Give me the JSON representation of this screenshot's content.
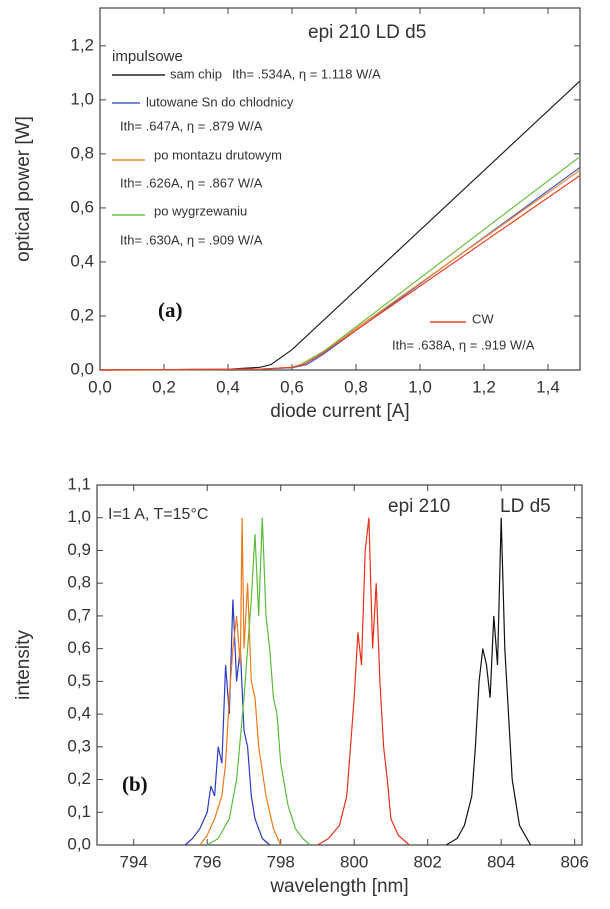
{
  "chart_data": [
    {
      "type": "line",
      "title": "epi 210    LD d5",
      "panel_label": "(a)",
      "legend_title": "impulsowe",
      "x_label": "diode current  [A]",
      "y_label": "optical power [W]",
      "xlim": [
        0,
        1.5
      ],
      "ylim": [
        0,
        1.34
      ],
      "xticks": [
        {
          "value": 0,
          "label": "0,0"
        },
        {
          "value": 0.2,
          "label": "0,2"
        },
        {
          "value": 0.4,
          "label": "0,4"
        },
        {
          "value": 0.6,
          "label": "0,6"
        },
        {
          "value": 0.8,
          "label": "0,8"
        },
        {
          "value": 1.0,
          "label": "1,0"
        },
        {
          "value": 1.2,
          "label": "1,2"
        },
        {
          "value": 1.4,
          "label": "1,4"
        }
      ],
      "yticks": [
        {
          "value": 0,
          "label": "0,0"
        },
        {
          "value": 0.2,
          "label": "0,2"
        },
        {
          "value": 0.4,
          "label": "0,4"
        },
        {
          "value": 0.6,
          "label": "0,6"
        },
        {
          "value": 0.8,
          "label": "0,8"
        },
        {
          "value": 1.0,
          "label": "1,0"
        },
        {
          "value": 1.2,
          "label": "1,2"
        }
      ],
      "series": [
        {
          "name": "sam chip",
          "annotation": "Ith= .534A,  η = 1.118 W/A",
          "color": "#222222",
          "x": [
            0,
            0.4,
            0.5,
            0.534,
            0.6,
            1.5
          ],
          "values": [
            0,
            0.003,
            0.01,
            0.02,
            0.075,
            1.07
          ]
        },
        {
          "name": "lutowane Sn do chlodnicy",
          "annotation": "Ith= .647A,  η = .879 W/A",
          "color": "#4a5fd0",
          "x": [
            0,
            0.5,
            0.6,
            0.647,
            0.7,
            1.5
          ],
          "values": [
            0,
            0.003,
            0.008,
            0.02,
            0.06,
            0.75
          ]
        },
        {
          "name": "po montazu drutowym",
          "annotation": "Ith= .626A,  η = .867 W/A",
          "color": "#f28a2a",
          "x": [
            0,
            0.5,
            0.6,
            0.626,
            0.7,
            1.5
          ],
          "values": [
            0,
            0.003,
            0.01,
            0.02,
            0.07,
            0.74
          ]
        },
        {
          "name": "po wygrzewaniu",
          "annotation": "Ith= .630A,  η = .909 W/A",
          "color": "#6cc04a",
          "x": [
            0,
            0.5,
            0.6,
            0.63,
            0.7,
            1.5
          ],
          "values": [
            0,
            0.003,
            0.01,
            0.02,
            0.07,
            0.79
          ]
        },
        {
          "name": "CW",
          "annotation": "Ith= .638A,  η = .919 W/A",
          "color": "#e8402a",
          "x": [
            0,
            0.5,
            0.6,
            0.638,
            0.7,
            1.5
          ],
          "values": [
            0,
            0.003,
            0.01,
            0.02,
            0.065,
            0.72
          ]
        }
      ]
    },
    {
      "type": "line",
      "title": "epi 210",
      "subtitle": "LD d5",
      "annotation": "I=1 A, T=15°C",
      "panel_label": "(b)",
      "x_label": "wavelength  [nm]",
      "y_label": "intensity",
      "xlim": [
        793,
        806.2
      ],
      "ylim": [
        0,
        1.1
      ],
      "xticks": [
        794,
        796,
        798,
        800,
        802,
        804,
        806
      ],
      "yticks": [
        {
          "value": 0,
          "label": "0,0"
        },
        {
          "value": 0.1,
          "label": "0,1"
        },
        {
          "value": 0.2,
          "label": "0,2"
        },
        {
          "value": 0.3,
          "label": "0,3"
        },
        {
          "value": 0.4,
          "label": "0,4"
        },
        {
          "value": 0.5,
          "label": "0,5"
        },
        {
          "value": 0.6,
          "label": "0,6"
        },
        {
          "value": 0.7,
          "label": "0,7"
        },
        {
          "value": 0.8,
          "label": "0,8"
        },
        {
          "value": 0.9,
          "label": "0,9"
        },
        {
          "value": 1.0,
          "label": "1,0"
        },
        {
          "value": 1.1,
          "label": "1,1"
        }
      ],
      "series": [
        {
          "color": "#2a3cc0",
          "x": [
            795.4,
            795.6,
            795.8,
            796.0,
            796.1,
            796.2,
            796.3,
            796.4,
            796.5,
            796.6,
            796.7,
            796.8,
            796.9,
            797.0,
            797.1,
            797.2,
            797.3,
            797.5,
            797.7
          ],
          "values": [
            0,
            0.02,
            0.05,
            0.1,
            0.18,
            0.15,
            0.3,
            0.25,
            0.55,
            0.4,
            0.75,
            0.5,
            0.6,
            0.35,
            0.3,
            0.15,
            0.08,
            0.02,
            0
          ]
        },
        {
          "color": "#f07a1a",
          "x": [
            795.8,
            796.0,
            796.2,
            796.4,
            796.5,
            796.6,
            796.7,
            796.8,
            796.9,
            796.95,
            797.0,
            797.1,
            797.2,
            797.3,
            797.4,
            797.6,
            797.8,
            798.0
          ],
          "values": [
            0,
            0.03,
            0.08,
            0.15,
            0.25,
            0.45,
            0.6,
            0.7,
            0.55,
            1.0,
            0.6,
            0.8,
            0.5,
            0.45,
            0.3,
            0.15,
            0.05,
            0
          ]
        },
        {
          "color": "#5cbc3c",
          "x": [
            796.0,
            796.3,
            796.6,
            796.8,
            797.0,
            797.1,
            797.2,
            797.3,
            797.4,
            797.5,
            797.6,
            797.7,
            797.8,
            797.9,
            798.0,
            798.2,
            798.4,
            798.6,
            798.8
          ],
          "values": [
            0,
            0.02,
            0.08,
            0.2,
            0.45,
            0.6,
            0.75,
            0.95,
            0.7,
            1.0,
            0.7,
            0.6,
            0.45,
            0.4,
            0.25,
            0.12,
            0.05,
            0.02,
            0
          ]
        },
        {
          "color": "#e8301a",
          "x": [
            799.0,
            799.3,
            799.6,
            799.8,
            799.9,
            800.0,
            800.1,
            800.2,
            800.3,
            800.4,
            800.5,
            800.6,
            800.7,
            800.8,
            800.9,
            801.0,
            801.2,
            801.5
          ],
          "values": [
            0,
            0.02,
            0.06,
            0.15,
            0.3,
            0.45,
            0.65,
            0.55,
            0.9,
            1.0,
            0.6,
            0.8,
            0.5,
            0.3,
            0.2,
            0.08,
            0.03,
            0
          ]
        },
        {
          "color": "#111111",
          "x": [
            802.5,
            802.8,
            803.0,
            803.2,
            803.3,
            803.4,
            803.5,
            803.6,
            803.7,
            803.8,
            803.9,
            804.0,
            804.1,
            804.2,
            804.3,
            804.5,
            804.8
          ],
          "values": [
            0,
            0.02,
            0.06,
            0.15,
            0.3,
            0.5,
            0.6,
            0.55,
            0.45,
            0.7,
            0.55,
            1.0,
            0.6,
            0.4,
            0.2,
            0.06,
            0
          ]
        }
      ]
    }
  ]
}
